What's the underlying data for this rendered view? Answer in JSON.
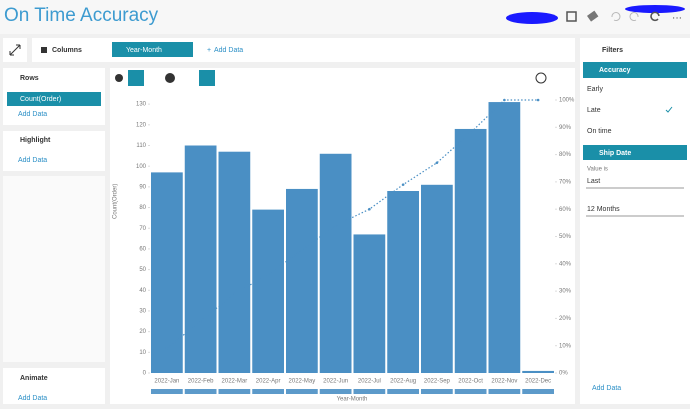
{
  "header": {
    "title": "On Time Accuracy"
  },
  "toolbar": {
    "columns": "Columns",
    "column_field": "Year-Month",
    "add_data": "Add Data"
  },
  "left_panel": {
    "rows": "Rows",
    "row_field": "Count(Order)",
    "rows_add": "Add Data",
    "highlight": "Highlight",
    "highlight_add": "Add Data",
    "animate": "Animate",
    "animate_add": "Add Data"
  },
  "filters": {
    "title": "Filters",
    "accuracy": "Accuracy",
    "options": [
      "Early",
      "Late",
      "On time"
    ],
    "ship_date": "Ship Date",
    "value_is": "Value is",
    "last": "Last",
    "period": "12 Months",
    "add_data": "Add Data"
  },
  "chart_data": {
    "type": "bar",
    "x_label": "Year-Month",
    "y_label": "Count(Order)",
    "categories": [
      "2022-Jan",
      "2022-Feb",
      "2022-Mar",
      "2022-Apr",
      "2022-May",
      "2022-Jun",
      "2022-Jul",
      "2022-Aug",
      "2022-Sep",
      "2022-Oct",
      "2022-Nov",
      "2022-Dec"
    ],
    "series": [
      {
        "type": "bar",
        "color": "#4a8fc4",
        "values": [
          97,
          110,
          107,
          79,
          89,
          106,
          67,
          88,
          91,
          118,
          131,
          1
        ]
      },
      {
        "type": "line",
        "axis": "y2",
        "color": "#4a8fc4",
        "values": [
          9,
          19,
          29,
          36,
          45,
          54,
          60,
          69,
          77,
          88,
          100,
          100
        ]
      }
    ],
    "ylim": [
      0,
      132
    ],
    "yticks": [
      0,
      10,
      20,
      30,
      40,
      50,
      60,
      70,
      80,
      90,
      100,
      110,
      120,
      130
    ],
    "y2lim": [
      0,
      100
    ],
    "y2ticks": [
      {
        "value": 0,
        "label": "0%"
      },
      {
        "value": 10,
        "label": "10%"
      },
      {
        "value": 20,
        "label": "20%"
      },
      {
        "value": 30,
        "label": "30%"
      },
      {
        "value": 40,
        "label": "40%"
      },
      {
        "value": 50,
        "label": "50%"
      },
      {
        "value": 60,
        "label": "60%"
      },
      {
        "value": 70,
        "label": "70%"
      },
      {
        "value": 80,
        "label": "80%"
      },
      {
        "value": 90,
        "label": "90%"
      },
      {
        "value": 100,
        "label": "100%"
      }
    ]
  }
}
